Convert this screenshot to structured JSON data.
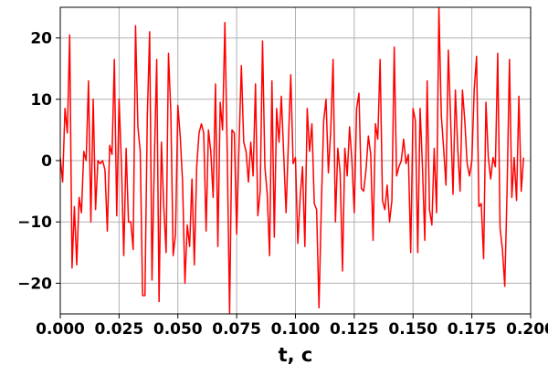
{
  "chart_data": {
    "type": "line",
    "title": "",
    "xlabel": "t, c",
    "ylabel": "",
    "xlim": [
      0.0,
      0.2
    ],
    "ylim": [
      -25,
      25
    ],
    "grid": true,
    "x_ticks": [
      0.0,
      0.025,
      0.05,
      0.075,
      0.1,
      0.125,
      0.15,
      0.175,
      0.2
    ],
    "x_tick_labels": [
      "0.000",
      "0.025",
      "0.050",
      "0.075",
      "0.100",
      "0.125",
      "0.150",
      "0.175",
      "0.200"
    ],
    "y_ticks": [
      -20,
      -10,
      0,
      10,
      20
    ],
    "y_tick_labels": [
      "−20",
      "−10",
      "0",
      "10",
      "20"
    ],
    "series": [
      {
        "color": "#ff0000",
        "x_start": 0.0,
        "x_step": 0.001,
        "values": [
          0.5,
          -3.5,
          8.5,
          4.5,
          20.5,
          -17.5,
          -7.5,
          -17,
          -6,
          -8.5,
          1.5,
          0,
          13,
          -10,
          10,
          -8,
          0,
          -0.5,
          0,
          -1.5,
          -11.5,
          2.5,
          1,
          16.5,
          -9,
          10,
          -0.5,
          -15.5,
          2,
          -10,
          -10,
          -14.5,
          22,
          5.5,
          1.5,
          -22,
          -22,
          7,
          21,
          -19.5,
          0,
          16.5,
          -23,
          3,
          -7.5,
          -15,
          17.5,
          8,
          -15.5,
          -12,
          9,
          4,
          -3.5,
          -20,
          -10.5,
          -14,
          -3,
          -17,
          -1,
          4.5,
          6,
          4.5,
          -11.5,
          5,
          1.5,
          -6,
          12.5,
          -14,
          9.5,
          5,
          22.5,
          1,
          -25,
          5,
          4.5,
          -12,
          2.5,
          15.5,
          3,
          1.5,
          -3.5,
          3,
          -2.5,
          12.5,
          -9,
          -5,
          19.5,
          -1,
          -5.5,
          -15.5,
          13,
          -12.5,
          8.5,
          3,
          10.5,
          1,
          -8.5,
          3,
          14,
          -0.5,
          0.5,
          -13.5,
          -6,
          -1,
          -14,
          8.5,
          1.5,
          6,
          -7,
          -8,
          -24,
          -7.5,
          6.5,
          10,
          -2,
          5,
          16.5,
          -10,
          2,
          -2,
          -18,
          2,
          -2.5,
          5.5,
          0,
          -8.5,
          8.5,
          11,
          -4.5,
          -5,
          -1.5,
          4,
          1,
          -13,
          6,
          3.5,
          16.5,
          -6.5,
          -8,
          -4,
          -10,
          -6.5,
          18.5,
          -2.5,
          -1,
          0,
          3.5,
          -0.5,
          1,
          -15,
          8.5,
          6.5,
          -15,
          8.5,
          -1,
          -13,
          13,
          -8,
          -10.5,
          2,
          -8.5,
          25,
          7.5,
          2,
          -4,
          18,
          6.5,
          -5.5,
          11.5,
          2,
          -5,
          11.5,
          6.5,
          -0.5,
          -2.5,
          0,
          11.5,
          17,
          -7.5,
          -7,
          -16,
          9.5,
          0.5,
          -3,
          0.5,
          -1,
          17.5,
          -11,
          -14.5,
          -20.5,
          -4.5,
          16.5,
          -6,
          0.5,
          -6.5,
          10.5,
          -5,
          0.5
        ]
      }
    ]
  }
}
